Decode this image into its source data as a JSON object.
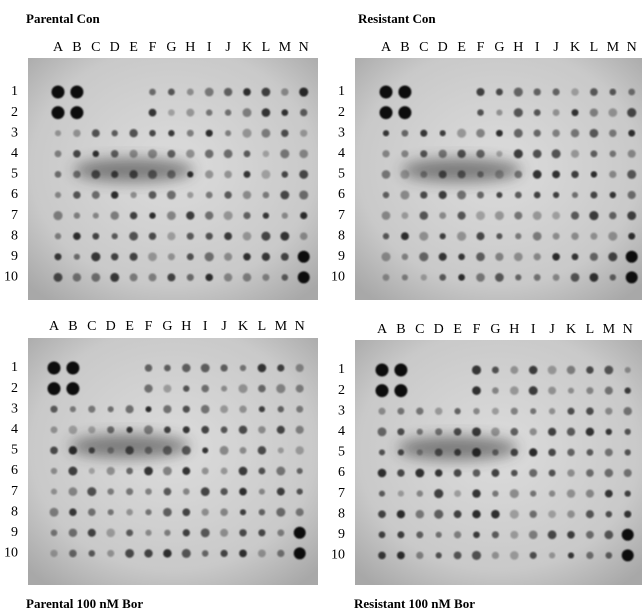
{
  "panels": [
    {
      "title": "Parental Con",
      "columns": [
        "A",
        "B",
        "C",
        "D",
        "E",
        "F",
        "G",
        "H",
        "I",
        "J",
        "K",
        "L",
        "M",
        "N"
      ],
      "rows": [
        "1",
        "2",
        "3",
        "4",
        "5",
        "6",
        "7",
        "8",
        "9",
        "10"
      ]
    },
    {
      "title": "Resistant Con",
      "columns": [
        "A",
        "B",
        "C",
        "D",
        "E",
        "F",
        "G",
        "H",
        "I",
        "J",
        "K",
        "L",
        "M",
        "N"
      ],
      "rows": [
        "1",
        "2",
        "3",
        "4",
        "5",
        "6",
        "7",
        "8",
        "9",
        "10"
      ]
    },
    {
      "title": "Parental 100 nM Bor",
      "columns": [
        "A",
        "B",
        "C",
        "D",
        "E",
        "F",
        "G",
        "H",
        "I",
        "J",
        "K",
        "L",
        "M",
        "N"
      ],
      "rows": [
        "1",
        "2",
        "3",
        "4",
        "5",
        "6",
        "7",
        "8",
        "9",
        "10"
      ]
    },
    {
      "title": "Resistant 100 nM Bor",
      "columns": [
        "A",
        "B",
        "C",
        "D",
        "E",
        "F",
        "G",
        "H",
        "I",
        "J",
        "K",
        "L",
        "M",
        "N"
      ],
      "rows": [
        "1",
        "2",
        "3",
        "4",
        "5",
        "6",
        "7",
        "8",
        "9",
        "10"
      ]
    }
  ]
}
